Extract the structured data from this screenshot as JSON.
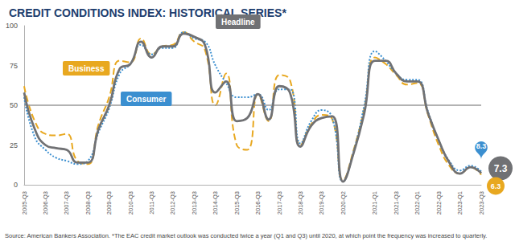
{
  "chart_data": {
    "type": "line",
    "title": "CREDIT CONDITIONS INDEX: HISTORICAL SERIES*",
    "footnote": "Source: American Bankers Association. *The EAC credit market outlook was conducted twice a year (Q1 and Q3) until 2020, at which point the frequency was increased to quarterly.",
    "categories": [
      "2005-Q3",
      null,
      "2006-Q3",
      null,
      "2007-Q3",
      null,
      "2008-Q3",
      null,
      "2009-Q3",
      null,
      "2010-Q3",
      null,
      "2011-Q3",
      null,
      "2012-Q3",
      null,
      "2013-Q3",
      null,
      "2014-Q3",
      null,
      "2015-Q3",
      null,
      "2016-Q3",
      null,
      "2017-Q3",
      null,
      "2018-Q3",
      null,
      "2019-Q3",
      null,
      "2020-Q2",
      null,
      null,
      "2021-Q1",
      null,
      "2021-Q3",
      null,
      "2022-Q1",
      null,
      "2022-Q3",
      null,
      "2023-Q1",
      null,
      "2023-Q3"
    ],
    "series": [
      {
        "name": "Headline",
        "color": "#707174",
        "line_style": "solid",
        "values": [
          58,
          35,
          25,
          23,
          22,
          14,
          14,
          35,
          50,
          73,
          76,
          90,
          80,
          87,
          87,
          95,
          93,
          88,
          58,
          65,
          40,
          42,
          57,
          41,
          62,
          58,
          24,
          37,
          42,
          43,
          2,
          20,
          45,
          78,
          78,
          70,
          65,
          65,
          45,
          28,
          14,
          7,
          11,
          7.3
        ]
      },
      {
        "name": "Business",
        "color": "#e8a820",
        "line_style": "dashed",
        "values": [
          62,
          40,
          32,
          31,
          32,
          15,
          13,
          38,
          55,
          78,
          77,
          92,
          82,
          87,
          88,
          96,
          90,
          85,
          50,
          70,
          25,
          22,
          57,
          40,
          69,
          66,
          25,
          38,
          44,
          41,
          3,
          22,
          48,
          80,
          76,
          69,
          63,
          64,
          44,
          25,
          12,
          7,
          11,
          6.3
        ]
      },
      {
        "name": "Consumer",
        "color": "#3b8fd0",
        "line_style": "dotted",
        "values": [
          55,
          30,
          22,
          17,
          15,
          13,
          15,
          33,
          48,
          70,
          76,
          88,
          82,
          86,
          86,
          96,
          92,
          90,
          75,
          64,
          55,
          55,
          57,
          47,
          60,
          60,
          26,
          40,
          47,
          42,
          2,
          21,
          50,
          84,
          78,
          70,
          66,
          66,
          46,
          28,
          15,
          9,
          12,
          8.3
        ]
      }
    ],
    "annotations": [
      {
        "series": "Consumer",
        "text": "8.3"
      },
      {
        "series": "Headline",
        "text": "7.3"
      },
      {
        "series": "Business",
        "text": "6.3"
      }
    ],
    "reference_lines": [
      50
    ],
    "ylim": [
      0,
      100
    ],
    "yticks": [
      0,
      25,
      50,
      75,
      100
    ],
    "grid": false
  }
}
